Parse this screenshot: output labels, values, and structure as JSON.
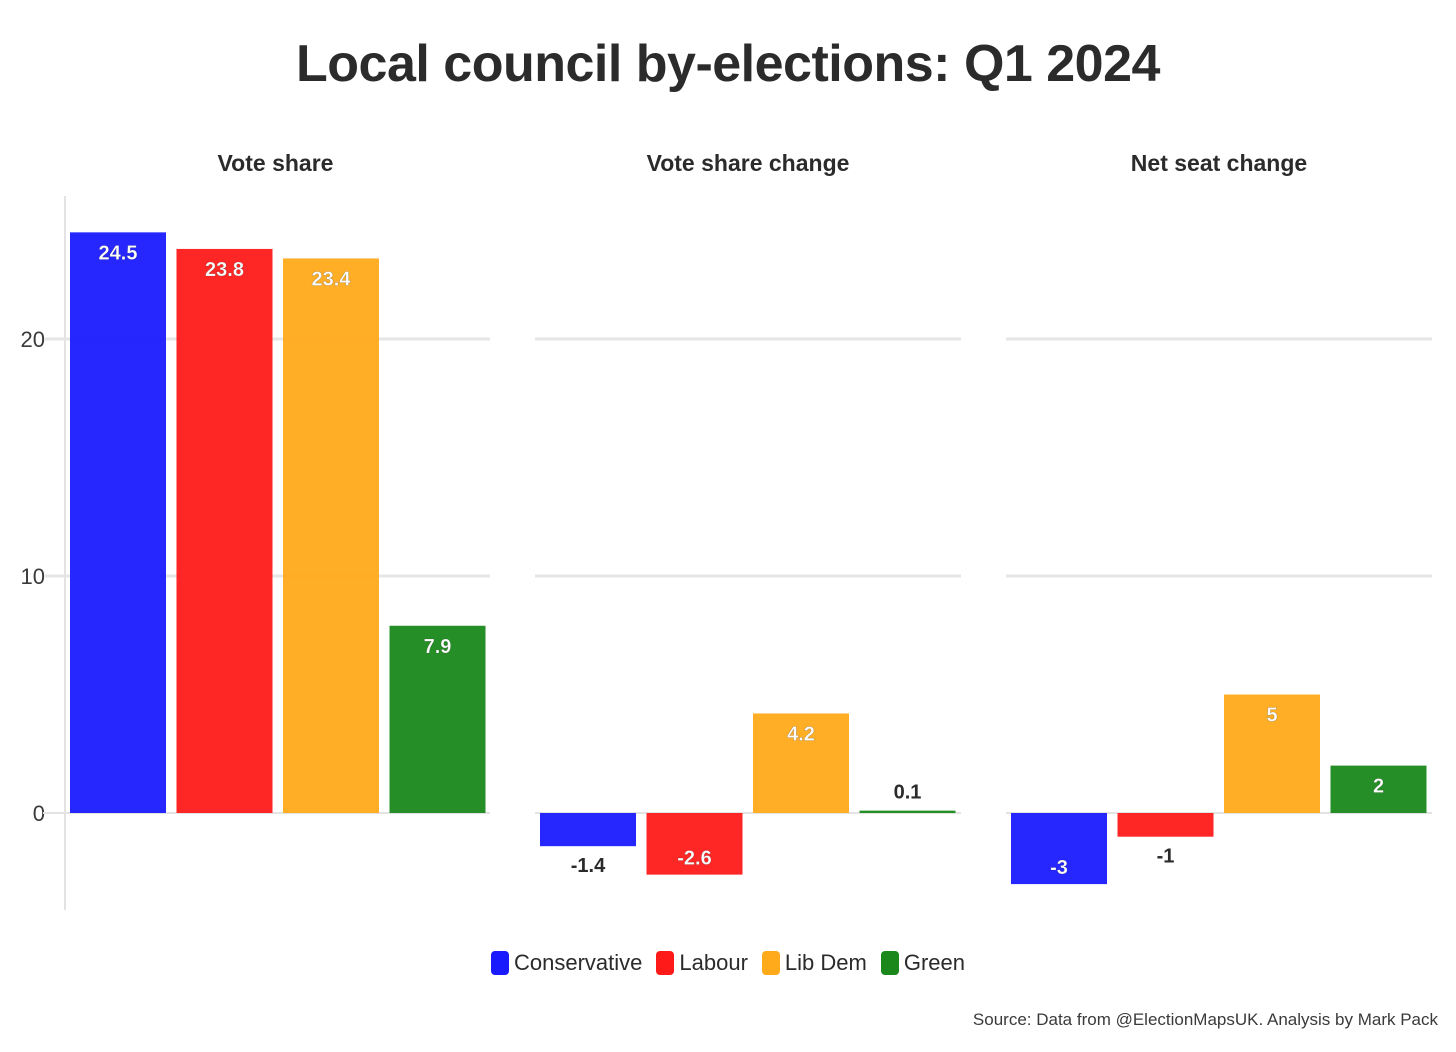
{
  "title": "Local council by-elections: Q1 2024",
  "source": "Source: Data from @ElectionMapsUK. Analysis by Mark Pack",
  "legend": [
    {
      "label": "Conservative",
      "color": "#1a1aff"
    },
    {
      "label": "Labour",
      "color": "#ff1a1a"
    },
    {
      "label": "Lib Dem",
      "color": "#ffaa1a"
    },
    {
      "label": "Green",
      "color": "#1a881a"
    }
  ],
  "chart_data": {
    "type": "bar",
    "categories": [
      "Conservative",
      "Labour",
      "Lib Dem",
      "Green"
    ],
    "colors": [
      "#1a1aff",
      "#ff1a1a",
      "#ffaa1a",
      "#1a881a"
    ],
    "ylim": [
      -4,
      25
    ],
    "yticks": [
      "0",
      "10",
      "20"
    ],
    "grid": true,
    "legend_position": "bottom",
    "panels": [
      {
        "title": "Vote share",
        "values": [
          24.5,
          23.8,
          23.4,
          7.9
        ],
        "labels": [
          "24.5",
          "23.8",
          "23.4",
          "7.9"
        ]
      },
      {
        "title": "Vote share change",
        "values": [
          -1.4,
          -2.6,
          4.2,
          0.1
        ],
        "labels": [
          "-1.4",
          "-2.6",
          "4.2",
          "0.1"
        ]
      },
      {
        "title": "Net seat change",
        "values": [
          -3,
          -1,
          5,
          2
        ],
        "labels": [
          "-3",
          "-1",
          "5",
          "2"
        ]
      }
    ]
  }
}
